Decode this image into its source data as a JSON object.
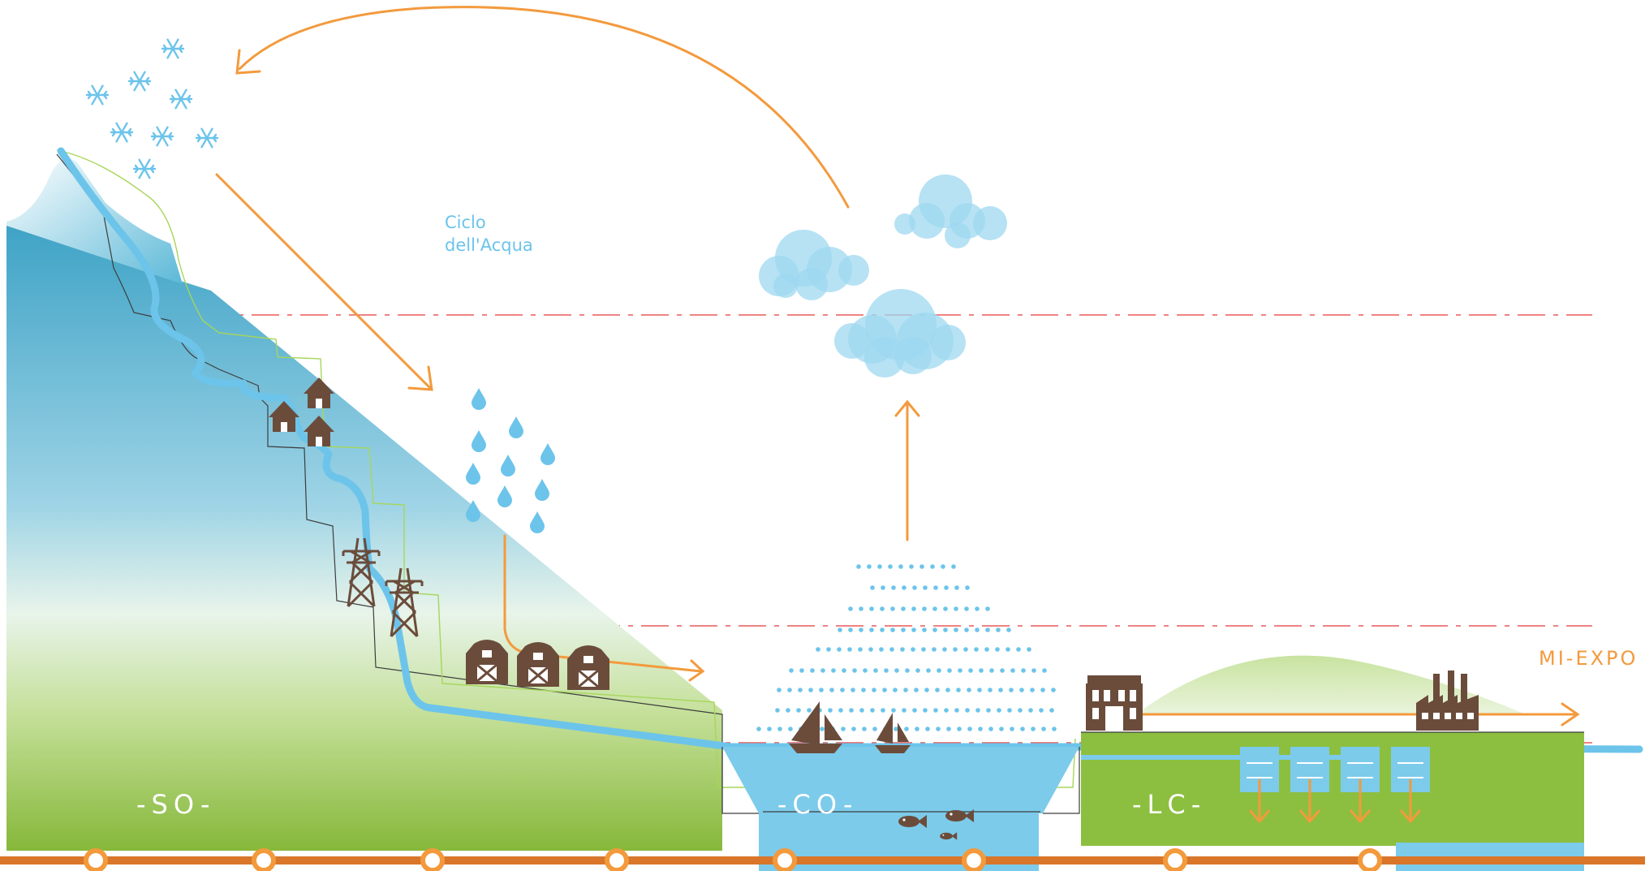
{
  "title": {
    "line1": "Ciclo",
    "line2": "dell'Acqua"
  },
  "zones": [
    {
      "id": "so",
      "label": "-SO-"
    },
    {
      "id": "co",
      "label": "-CO-"
    },
    {
      "id": "lc",
      "label": "-LC-"
    }
  ],
  "destination": "MI-EXPO",
  "colors": {
    "water": "#6cc4ea",
    "mountain": "#4aaccc",
    "grass": "#8cbf3f",
    "arrow": "#f39a3d",
    "icon": "#6b4c3b",
    "guide": "#e85a5a"
  },
  "icons": [
    "snowflake-icon",
    "raindrop-icon",
    "cloud-icon",
    "house-icon",
    "pylon-icon",
    "barn-icon",
    "boat-icon",
    "fish-icon",
    "museum-icon",
    "factory-icon"
  ]
}
